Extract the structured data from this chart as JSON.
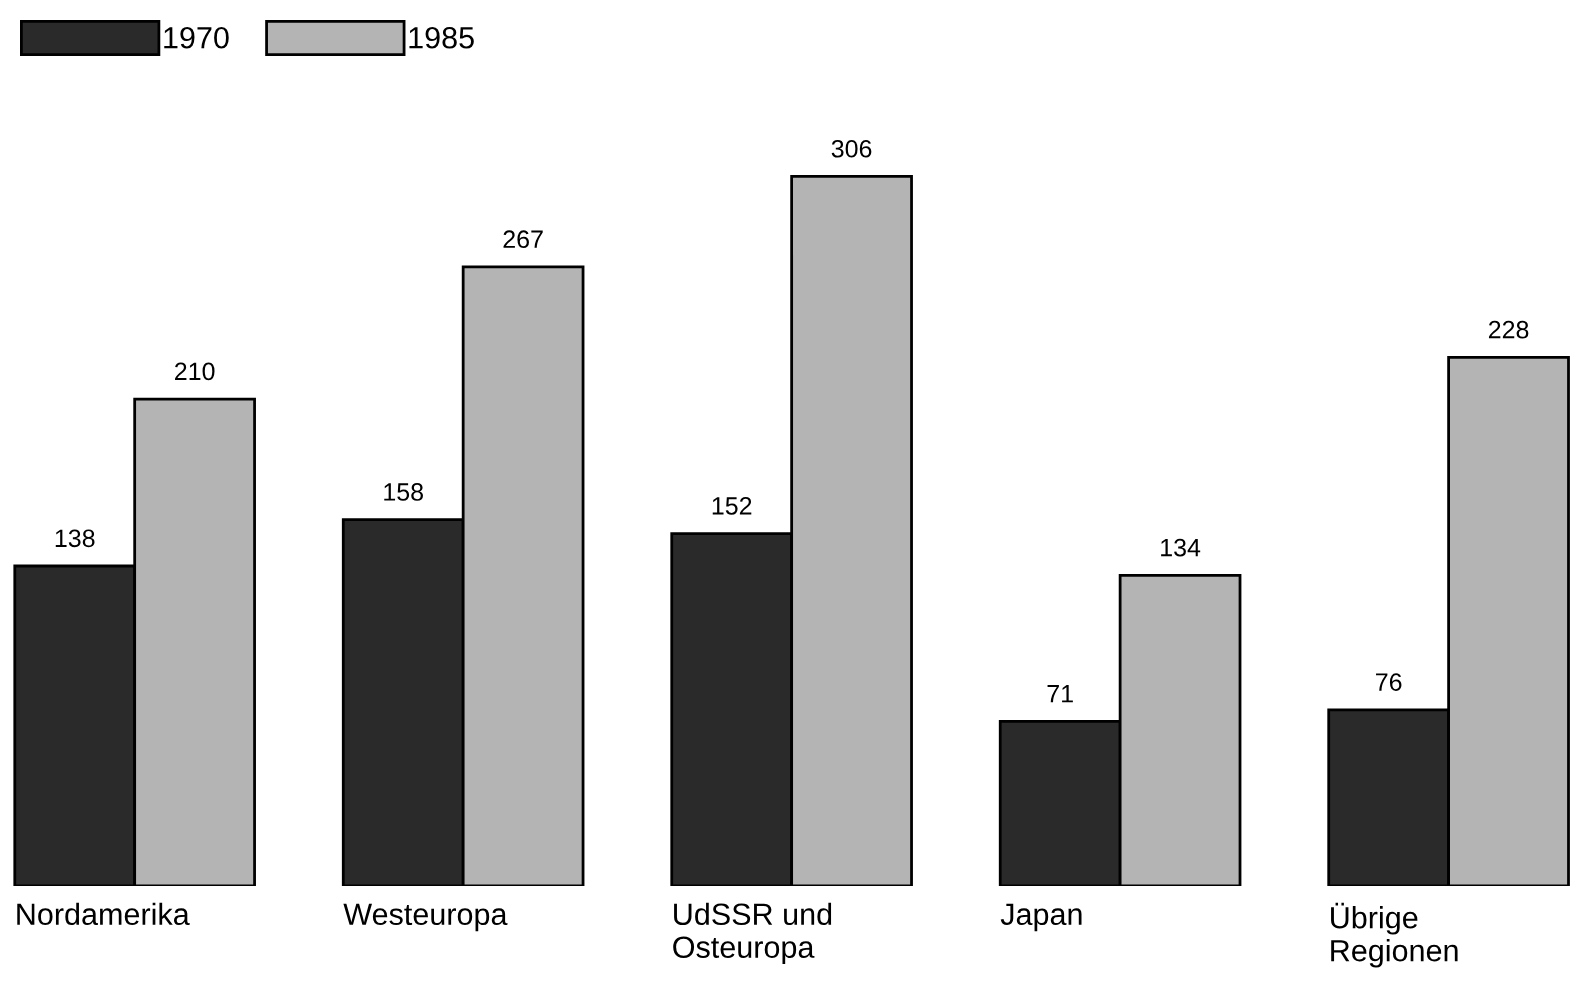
{
  "chart_data": {
    "type": "bar",
    "categories": [
      "Nordamerika",
      "Westeuropa",
      "UdSSR und\nOsteuropa",
      "Japan",
      "Übrige\nRegionen"
    ],
    "series": [
      {
        "name": "1970",
        "color": "#2a2a2a",
        "values": [
          138,
          158,
          152,
          71,
          76
        ]
      },
      {
        "name": "1985",
        "color": "#b4b4b4",
        "values": [
          210,
          267,
          306,
          134,
          228
        ]
      }
    ],
    "data_labels": true,
    "legend": "top left",
    "grid": false
  }
}
